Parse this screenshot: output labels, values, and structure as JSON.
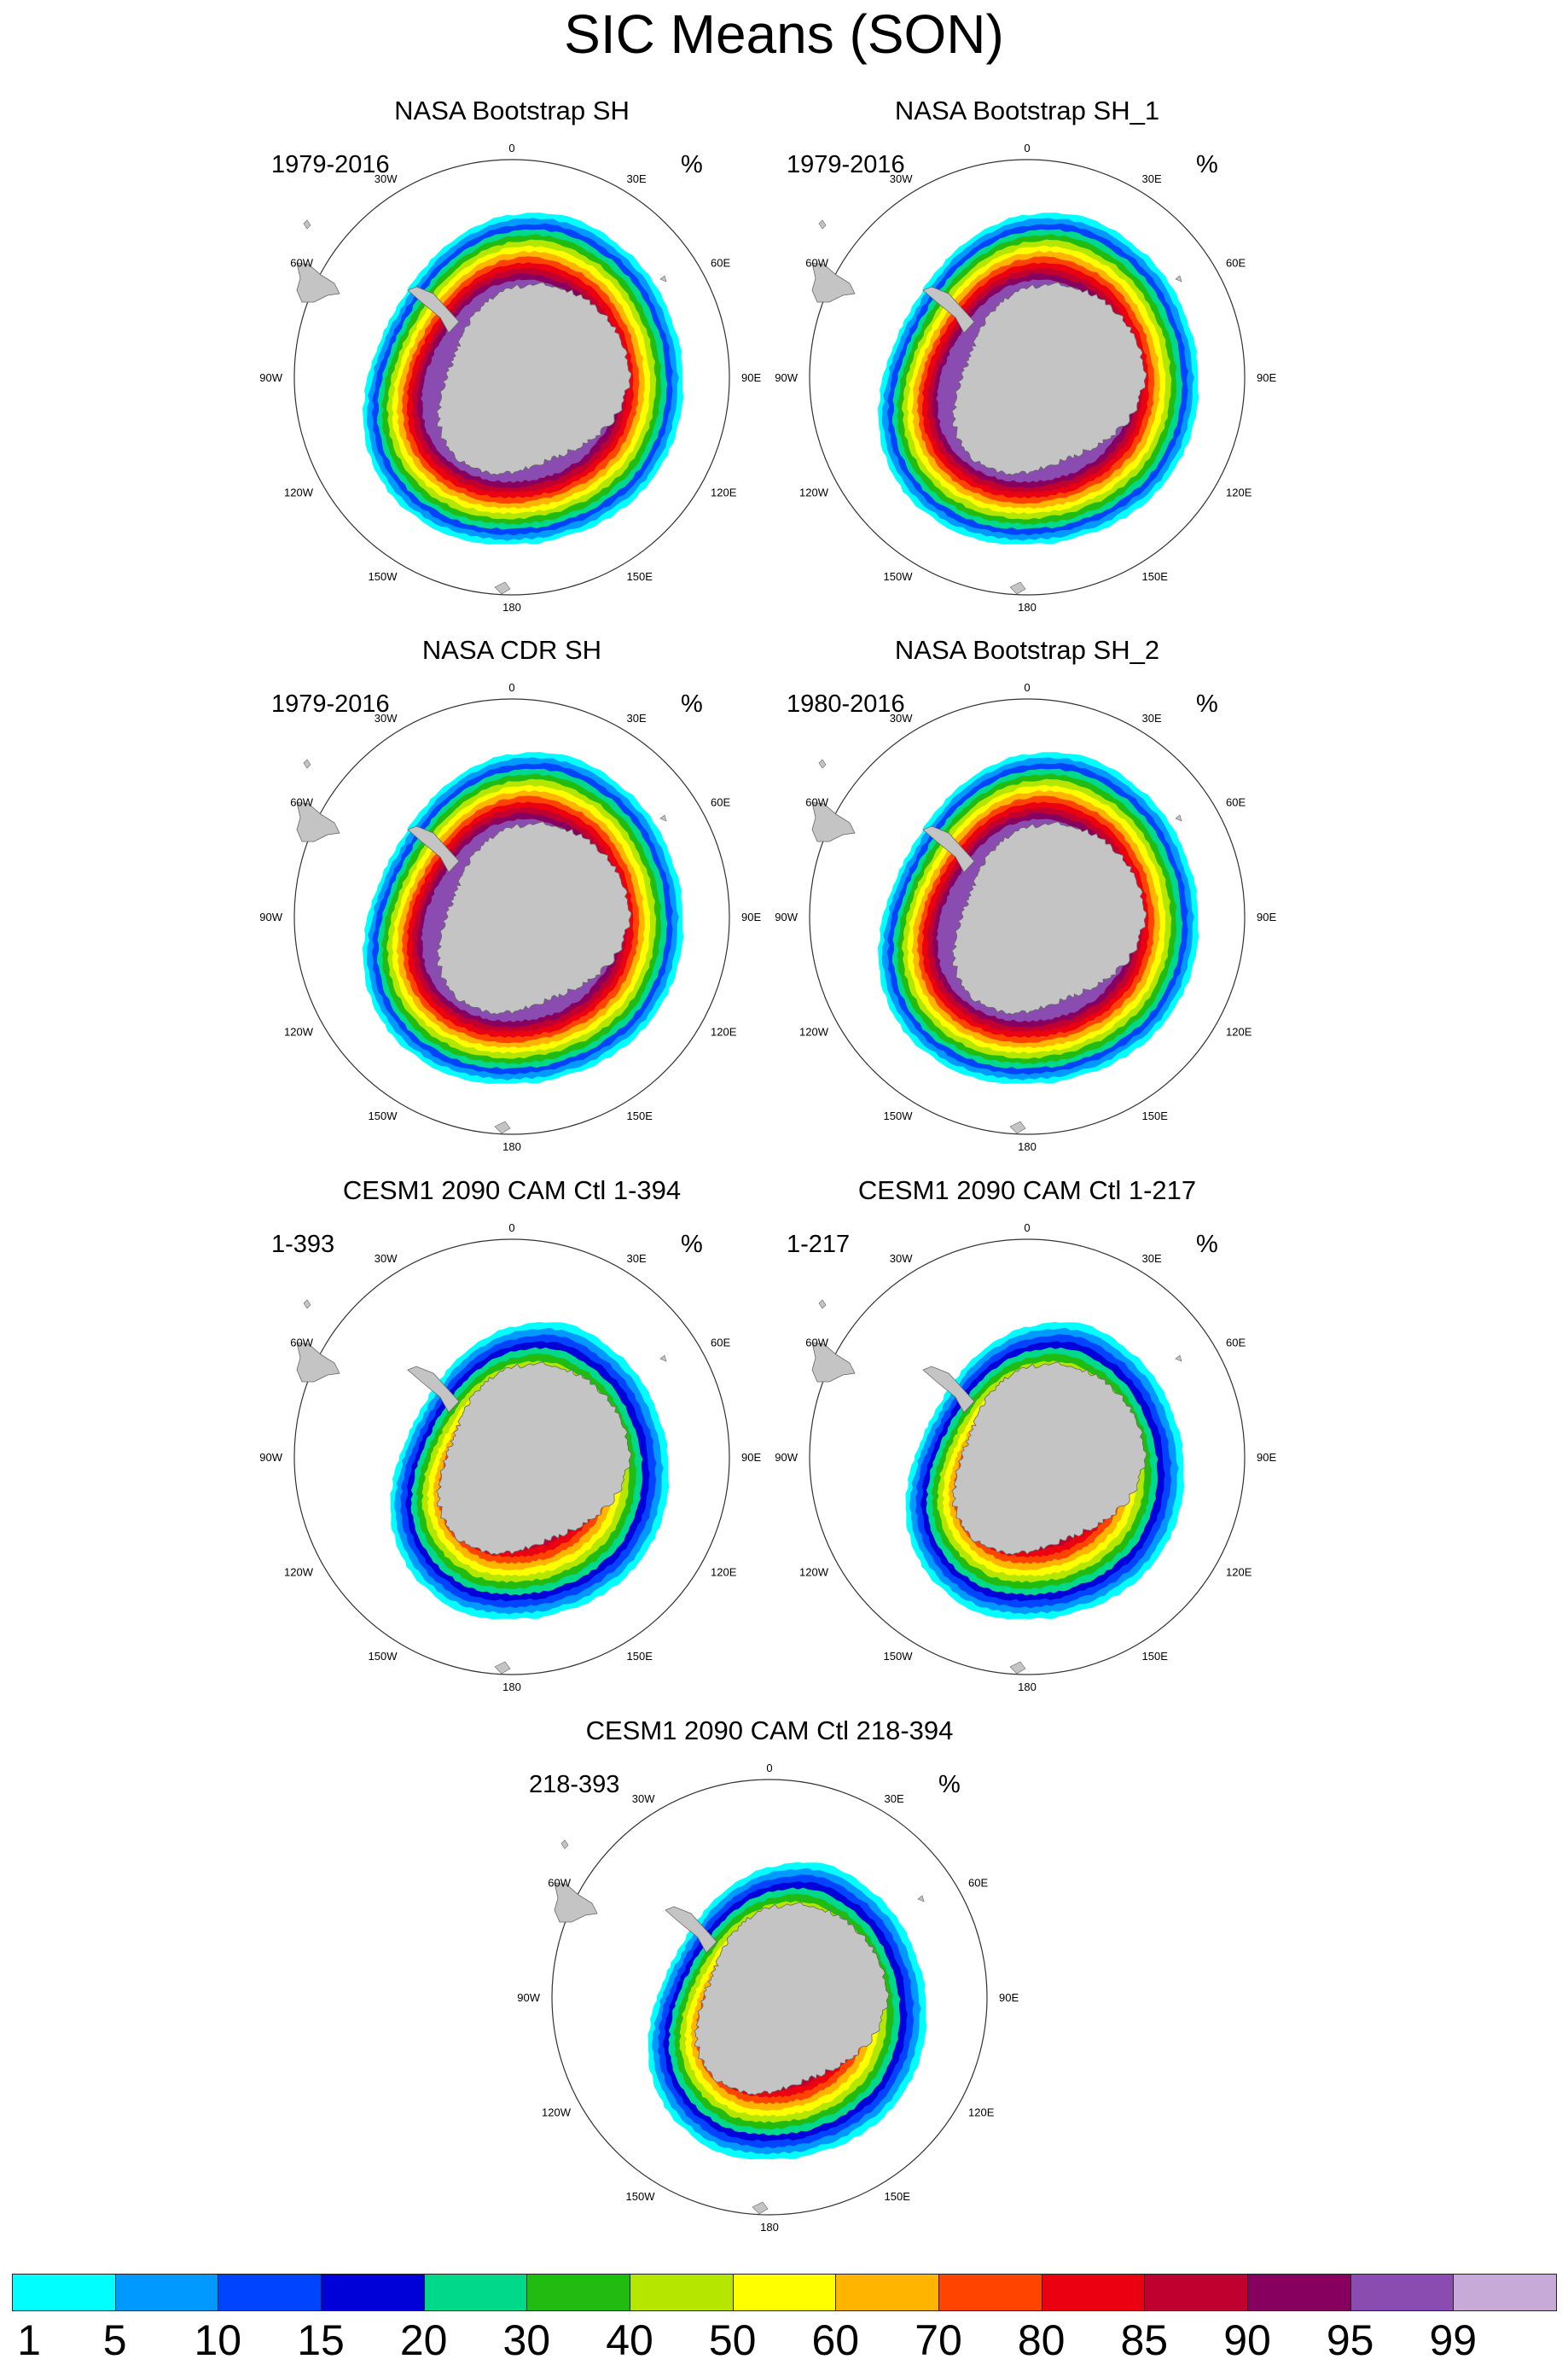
{
  "title": "SIC Means (SON)",
  "panels": [
    {
      "title": "NASA Bootstrap SH",
      "period": "1979-2016",
      "units": "%",
      "pattern": "obs"
    },
    {
      "title": "NASA Bootstrap SH_1",
      "period": "1979-2016",
      "units": "%",
      "pattern": "obs"
    },
    {
      "title": "NASA CDR SH",
      "period": "1979-2016",
      "units": "%",
      "pattern": "obs"
    },
    {
      "title": "NASA Bootstrap SH_2",
      "period": "1980-2016",
      "units": "%",
      "pattern": "obs"
    },
    {
      "title": "CESM1 2090 CAM Ctl 1-394",
      "period": "1-393",
      "units": "%",
      "pattern": "model"
    },
    {
      "title": "CESM1 2090 CAM Ctl 1-217",
      "period": "1-217",
      "units": "%",
      "pattern": "model"
    },
    {
      "title": "CESM1 2090 CAM Ctl 218-394",
      "period": "218-393",
      "units": "%",
      "pattern": "model"
    }
  ],
  "lon_labels": [
    "0",
    "30E",
    "60E",
    "90E",
    "120E",
    "150E",
    "180",
    "150W",
    "120W",
    "90W",
    "60W",
    "30W"
  ],
  "colorbar": {
    "labels": [
      "1",
      "5",
      "10",
      "15",
      "20",
      "30",
      "40",
      "50",
      "60",
      "70",
      "80",
      "85",
      "90",
      "95",
      "99"
    ],
    "colors": [
      "#00ffff",
      "#0099ff",
      "#0044ff",
      "#0000d8",
      "#00d98a",
      "#22bb11",
      "#b4e600",
      "#ffff00",
      "#ffb400",
      "#ff4400",
      "#ea0011",
      "#c0002e",
      "#870060",
      "#8a4cb0",
      "#c8aad8"
    ]
  },
  "colors": {
    "land": "#c4c4c4",
    "coast": "#666666",
    "circle": "#333333",
    "background": "#ffffff"
  }
}
